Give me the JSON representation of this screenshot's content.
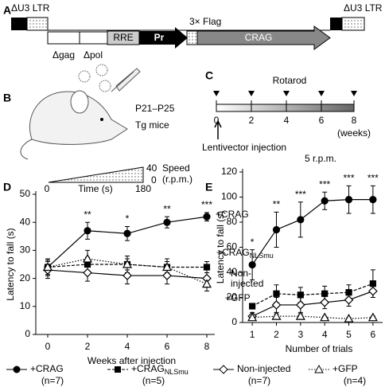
{
  "construct": {
    "panel": "A",
    "ltr_left": "ΔU3 LTR",
    "ltr_right": "ΔU3 LTR",
    "gag": "Δgag",
    "pol": "Δpol",
    "rre": "RRE",
    "promoter": "Pr",
    "flag": "3× Flag",
    "gene": "CRAG"
  },
  "mice": {
    "panel": "B",
    "age": "P21–P25",
    "label": "Tg mice"
  },
  "timeline": {
    "panel": "C",
    "title": "Rotarod",
    "ticks": [
      "0",
      "2",
      "4",
      "6",
      "8"
    ],
    "unit": "(weeks)",
    "injection": "Lentivector injection"
  },
  "chart_data": [
    {
      "type": "line",
      "panel": "D",
      "ylabel": "Latency to fall (s)",
      "xlabel": "Weeks after injection",
      "xlim": [
        -0.6,
        8.4
      ],
      "xticks": [
        0,
        2,
        4,
        6,
        8
      ],
      "ylim": [
        0,
        50
      ],
      "yticks": [
        0,
        10,
        20,
        30,
        40,
        50
      ],
      "inset": {
        "time_start": "0",
        "time_end": "180",
        "time_label": "Time (s)",
        "speed_top": "40",
        "speed_bottom": "0",
        "speed_label": "Speed",
        "speed_unit": "(r.p.m.)"
      },
      "series": [
        {
          "name": "+CRAG",
          "color": "#000",
          "marker": "circle",
          "line_style": "solid",
          "x": [
            0,
            2,
            4,
            6,
            8
          ],
          "values": [
            24,
            37,
            36,
            40,
            42
          ],
          "errors": [
            3,
            3,
            2.5,
            2,
            1.5
          ]
        },
        {
          "name": "+CRAG",
          "name_sub": "NLSmu",
          "color": "#000",
          "marker": "square",
          "line_style": "dashed",
          "x": [
            0,
            2,
            4,
            6,
            8
          ],
          "values": [
            24,
            25,
            25,
            24,
            24
          ],
          "errors": [
            2.5,
            2.5,
            2,
            2,
            2
          ]
        },
        {
          "name": "Non-injected",
          "color": "#000",
          "marker": "diamond",
          "line_style": "solid",
          "x": [
            0,
            2,
            4,
            6,
            8
          ],
          "values": [
            23,
            22,
            21,
            21,
            20
          ],
          "errors": [
            3,
            3,
            3,
            3,
            3
          ]
        },
        {
          "name": "+GFP",
          "color": "#000",
          "marker": "triangle",
          "line_style": "dotted",
          "x": [
            0,
            2,
            4,
            6,
            8
          ],
          "values": [
            24,
            27,
            25,
            24,
            18
          ],
          "errors": [
            3,
            3,
            3,
            3,
            2.5
          ]
        }
      ],
      "annotations": [
        {
          "x": 2,
          "text": "**"
        },
        {
          "x": 4,
          "text": "*"
        },
        {
          "x": 6,
          "text": "**"
        },
        {
          "x": 8,
          "text": "***"
        }
      ],
      "line_labels": [
        {
          "text": "+CRAG"
        },
        {
          "text": "+CRAG",
          "sub": "NLSmu"
        },
        {
          "text": "Non-"
        },
        {
          "text": "injected"
        },
        {
          "text": "+GFP"
        }
      ]
    },
    {
      "type": "line",
      "panel": "E",
      "title": "5 r.p.m.",
      "ylabel": "Latency to fall (s)",
      "xlabel": "Number of trials",
      "xlim": [
        0.6,
        6.4
      ],
      "xticks": [
        1,
        2,
        3,
        4,
        5,
        6
      ],
      "ylim": [
        0,
        120
      ],
      "yticks": [
        0,
        20,
        40,
        60,
        80,
        100,
        120
      ],
      "series": [
        {
          "name": "+CRAG",
          "color": "#000",
          "marker": "circle",
          "line_style": "solid",
          "x": [
            1,
            2,
            3,
            4,
            5,
            6
          ],
          "values": [
            46,
            74,
            82,
            97,
            98,
            98
          ],
          "errors": [
            12,
            14,
            14,
            7,
            11,
            11
          ]
        },
        {
          "name": "+CRAG",
          "name_sub": "NLSmu",
          "color": "#000",
          "marker": "square",
          "line_style": "dashed",
          "x": [
            1,
            2,
            3,
            4,
            5,
            6
          ],
          "values": [
            13,
            23,
            22,
            23,
            24,
            31
          ],
          "errors": [
            0,
            7,
            6,
            6,
            6,
            11
          ]
        },
        {
          "name": "Non-injected",
          "color": "#000",
          "marker": "diamond",
          "line_style": "solid",
          "x": [
            1,
            2,
            3,
            4,
            5,
            6
          ],
          "values": [
            5,
            14,
            14,
            16,
            18,
            25
          ],
          "errors": [
            3,
            6,
            6,
            5,
            5,
            5
          ]
        },
        {
          "name": "+GFP",
          "color": "#000",
          "marker": "triangle",
          "line_style": "dotted",
          "x": [
            1,
            2,
            3,
            4,
            5,
            6
          ],
          "values": [
            4,
            5,
            5,
            4,
            3,
            4
          ],
          "errors": [
            1,
            2,
            2,
            1,
            1,
            1
          ]
        }
      ],
      "annotations": [
        {
          "x": 1,
          "text": "*"
        },
        {
          "x": 2,
          "text": "**"
        },
        {
          "x": 3,
          "text": "***"
        },
        {
          "x": 4,
          "text": "***"
        },
        {
          "x": 5,
          "text": "***"
        },
        {
          "x": 6,
          "text": "***"
        }
      ]
    }
  ],
  "legend": {
    "n_labels": [
      "(n=7)",
      "(n=5)",
      "(n=7)",
      "(n=4)"
    ]
  }
}
